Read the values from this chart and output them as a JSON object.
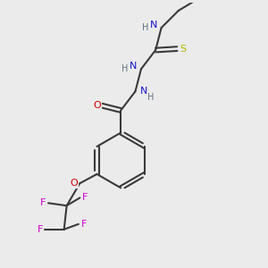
{
  "background_color": "#ebebeb",
  "bond_color": "#3a3a3a",
  "atom_colors": {
    "N": "#1414c8",
    "O": "#cc0000",
    "S": "#b8b800",
    "F": "#cc00cc",
    "C": "#3a3a3a",
    "H": "#607080"
  },
  "figsize": [
    3.0,
    3.0
  ],
  "dpi": 100
}
